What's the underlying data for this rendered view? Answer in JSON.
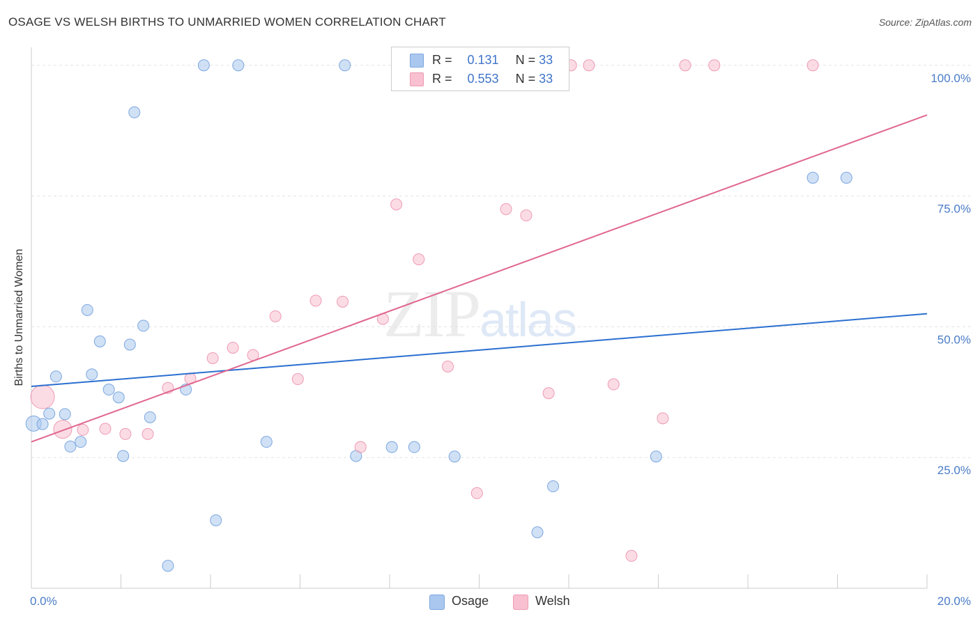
{
  "title": "OSAGE VS WELSH BIRTHS TO UNMARRIED WOMEN CORRELATION CHART",
  "source": "Source: ZipAtlas.com",
  "watermark": {
    "zip": "ZIP",
    "atlas": "atlas"
  },
  "legend": {
    "r_label": "R =",
    "n_label": "N =",
    "rows": [
      {
        "name": "Osage",
        "r": "0.131",
        "n": "33",
        "color": "#aac8ef",
        "stroke": "#7ca6df"
      },
      {
        "name": "Welsh",
        "r": "0.553",
        "n": "33",
        "color": "#f8c0d0",
        "stroke": "#ee9ab3"
      }
    ]
  },
  "bottom_legend": [
    "Osage",
    "Welsh"
  ],
  "chart_data": {
    "type": "scatter",
    "title": "OSAGE VS WELSH BIRTHS TO UNMARRIED WOMEN CORRELATION CHART",
    "xlabel": "",
    "ylabel": "Births to Unmarried Women",
    "xlim": [
      0,
      20
    ],
    "ylim": [
      0,
      104.5
    ],
    "x_tick_labels": [
      {
        "value": 0,
        "label": "0.0%"
      },
      {
        "value": 20,
        "label": "20.0%"
      }
    ],
    "y_tick_labels": [
      {
        "value": 25,
        "label": "25.0%"
      },
      {
        "value": 50,
        "label": "50.0%"
      },
      {
        "value": 75,
        "label": "75.0%"
      },
      {
        "value": 100,
        "label": "100.0%"
      }
    ],
    "grid": true,
    "legend_position": "top-center",
    "series": [
      {
        "name": "Osage",
        "color": "#aac8ef",
        "stroke": "#7ca6df",
        "line_color": "#2a6fd0",
        "trend": {
          "x0": 0,
          "y0": 38.6,
          "x1": 20,
          "y1": 52.5
        },
        "points": [
          {
            "x": 0.05,
            "y": 31.5,
            "s": 11
          },
          {
            "x": 0.25,
            "y": 31.4
          },
          {
            "x": 0.4,
            "y": 33.4
          },
          {
            "x": 0.55,
            "y": 40.5
          },
          {
            "x": 0.75,
            "y": 33.3
          },
          {
            "x": 0.87,
            "y": 27.1
          },
          {
            "x": 1.1,
            "y": 28.0
          },
          {
            "x": 1.25,
            "y": 53.2
          },
          {
            "x": 1.35,
            "y": 40.9
          },
          {
            "x": 1.53,
            "y": 47.2
          },
          {
            "x": 1.73,
            "y": 38.0
          },
          {
            "x": 1.95,
            "y": 36.5
          },
          {
            "x": 2.05,
            "y": 25.3
          },
          {
            "x": 2.2,
            "y": 46.6
          },
          {
            "x": 2.3,
            "y": 91.0
          },
          {
            "x": 2.5,
            "y": 50.2
          },
          {
            "x": 2.65,
            "y": 32.7
          },
          {
            "x": 3.05,
            "y": 4.3
          },
          {
            "x": 3.45,
            "y": 38.0
          },
          {
            "x": 3.85,
            "y": 100.0
          },
          {
            "x": 4.12,
            "y": 13.0
          },
          {
            "x": 4.62,
            "y": 100.0
          },
          {
            "x": 5.25,
            "y": 28.0
          },
          {
            "x": 7.0,
            "y": 100.0
          },
          {
            "x": 7.25,
            "y": 25.3
          },
          {
            "x": 8.05,
            "y": 27.0
          },
          {
            "x": 8.55,
            "y": 27.0
          },
          {
            "x": 9.45,
            "y": 25.2
          },
          {
            "x": 11.3,
            "y": 10.7
          },
          {
            "x": 11.65,
            "y": 19.5
          },
          {
            "x": 13.95,
            "y": 25.2
          },
          {
            "x": 17.45,
            "y": 78.5
          },
          {
            "x": 18.2,
            "y": 78.5
          }
        ]
      },
      {
        "name": "Welsh",
        "color": "#f8c0d0",
        "stroke": "#ee9ab3",
        "line_color": "#e0668f",
        "trend": {
          "x0": 0,
          "y0": 28.0,
          "x1": 20,
          "y1": 90.5
        },
        "points": [
          {
            "x": 0.25,
            "y": 36.6,
            "s": 17
          },
          {
            "x": 0.7,
            "y": 30.4,
            "s": 13
          },
          {
            "x": 1.15,
            "y": 30.3
          },
          {
            "x": 1.65,
            "y": 30.5
          },
          {
            "x": 2.1,
            "y": 29.5
          },
          {
            "x": 2.6,
            "y": 29.5
          },
          {
            "x": 3.05,
            "y": 38.3
          },
          {
            "x": 3.55,
            "y": 40.1
          },
          {
            "x": 4.05,
            "y": 44.0
          },
          {
            "x": 4.5,
            "y": 46.0
          },
          {
            "x": 4.95,
            "y": 44.6
          },
          {
            "x": 5.45,
            "y": 52.0
          },
          {
            "x": 5.95,
            "y": 40.0
          },
          {
            "x": 6.35,
            "y": 55.0
          },
          {
            "x": 6.95,
            "y": 54.8
          },
          {
            "x": 7.35,
            "y": 27.0
          },
          {
            "x": 7.85,
            "y": 51.5
          },
          {
            "x": 8.15,
            "y": 73.4
          },
          {
            "x": 8.65,
            "y": 62.9
          },
          {
            "x": 9.3,
            "y": 42.4
          },
          {
            "x": 9.95,
            "y": 18.2
          },
          {
            "x": 10.35,
            "y": 100.0
          },
          {
            "x": 10.6,
            "y": 72.5
          },
          {
            "x": 11.05,
            "y": 71.3
          },
          {
            "x": 11.55,
            "y": 37.3
          },
          {
            "x": 12.05,
            "y": 100.0
          },
          {
            "x": 12.45,
            "y": 100.0
          },
          {
            "x": 13.0,
            "y": 39.0
          },
          {
            "x": 13.4,
            "y": 6.2
          },
          {
            "x": 14.1,
            "y": 32.5
          },
          {
            "x": 14.6,
            "y": 100.0
          },
          {
            "x": 15.25,
            "y": 100.0
          },
          {
            "x": 17.45,
            "y": 100.0
          }
        ]
      }
    ]
  }
}
